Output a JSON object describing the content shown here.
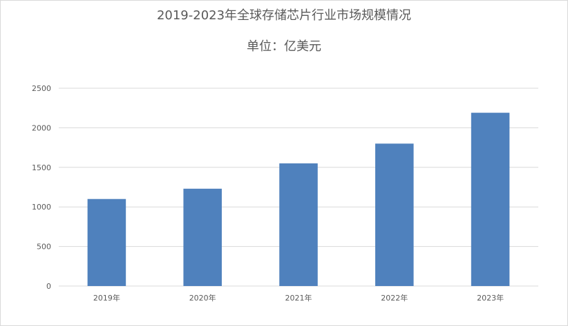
{
  "chart_data": {
    "type": "bar",
    "title": "2019-2023年全球存储芯片行业市场规模情况",
    "subtitle": "单位：亿美元",
    "categories": [
      "2019年",
      "2020年",
      "2021年",
      "2022年",
      "2023年"
    ],
    "values": [
      1100,
      1230,
      1550,
      1800,
      2190
    ],
    "ylim": [
      0,
      2500
    ],
    "yticks": [
      0,
      500,
      1000,
      1500,
      2000,
      2500
    ],
    "grid": true,
    "legend": "none",
    "bar_color": "#4f81bd",
    "grid_color": "#d9d9d9"
  }
}
